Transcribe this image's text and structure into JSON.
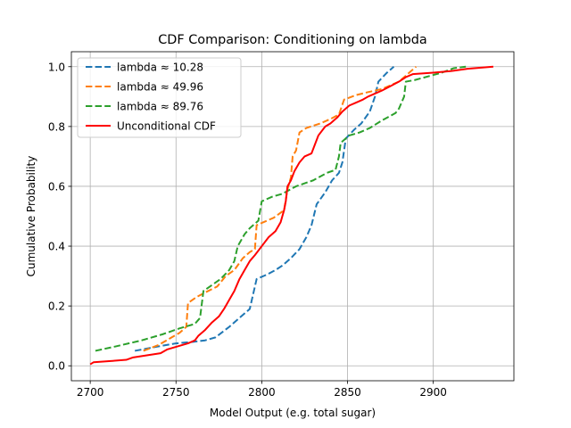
{
  "chart_data": {
    "type": "line",
    "title": "CDF Comparison: Conditioning on lambda",
    "xlabel": "Model Output (e.g. total sugar)",
    "ylabel": "Cumulative Probability",
    "xlim": [
      2689,
      2947
    ],
    "ylim": [
      -0.05,
      1.05
    ],
    "xticks": [
      2700,
      2750,
      2800,
      2850,
      2900
    ],
    "yticks": [
      0.0,
      0.2,
      0.4,
      0.6,
      0.8,
      1.0
    ],
    "xtick_labels": [
      "2700",
      "2750",
      "2800",
      "2850",
      "2900"
    ],
    "ytick_labels": [
      "0.0",
      "0.2",
      "0.4",
      "0.6",
      "0.8",
      "1.0"
    ],
    "grid": true,
    "legend_position": "top-left",
    "series": [
      {
        "name": "lambda ≈ 10.28",
        "color": "#1f77b4",
        "style": "dashed",
        "points": [
          [
            2726,
            0.05
          ],
          [
            2740,
            0.065
          ],
          [
            2750,
            0.075
          ],
          [
            2760,
            0.08
          ],
          [
            2767,
            0.085
          ],
          [
            2773,
            0.095
          ],
          [
            2781,
            0.13
          ],
          [
            2787,
            0.16
          ],
          [
            2793,
            0.19
          ],
          [
            2795,
            0.24
          ],
          [
            2797,
            0.29
          ],
          [
            2803,
            0.305
          ],
          [
            2808,
            0.32
          ],
          [
            2812,
            0.335
          ],
          [
            2817,
            0.36
          ],
          [
            2822,
            0.39
          ],
          [
            2826,
            0.43
          ],
          [
            2829,
            0.47
          ],
          [
            2832,
            0.54
          ],
          [
            2837,
            0.58
          ],
          [
            2841,
            0.62
          ],
          [
            2845,
            0.645
          ],
          [
            2847,
            0.68
          ],
          [
            2849,
            0.76
          ],
          [
            2854,
            0.79
          ],
          [
            2858,
            0.81
          ],
          [
            2863,
            0.85
          ],
          [
            2866,
            0.9
          ],
          [
            2868,
            0.95
          ],
          [
            2873,
            0.98
          ],
          [
            2877,
            1.0
          ]
        ]
      },
      {
        "name": "lambda ≈ 49.96",
        "color": "#ff7f0e",
        "style": "dashed",
        "points": [
          [
            2731,
            0.05
          ],
          [
            2740,
            0.07
          ],
          [
            2746,
            0.09
          ],
          [
            2752,
            0.11
          ],
          [
            2756,
            0.13
          ],
          [
            2757,
            0.21
          ],
          [
            2762,
            0.23
          ],
          [
            2767,
            0.245
          ],
          [
            2774,
            0.265
          ],
          [
            2779,
            0.3
          ],
          [
            2784,
            0.32
          ],
          [
            2789,
            0.36
          ],
          [
            2793,
            0.38
          ],
          [
            2796,
            0.39
          ],
          [
            2797,
            0.47
          ],
          [
            2801,
            0.48
          ],
          [
            2807,
            0.495
          ],
          [
            2813,
            0.52
          ],
          [
            2815,
            0.59
          ],
          [
            2817,
            0.63
          ],
          [
            2818,
            0.7
          ],
          [
            2820,
            0.72
          ],
          [
            2822,
            0.78
          ],
          [
            2826,
            0.795
          ],
          [
            2834,
            0.81
          ],
          [
            2840,
            0.825
          ],
          [
            2845,
            0.84
          ],
          [
            2848,
            0.89
          ],
          [
            2855,
            0.905
          ],
          [
            2862,
            0.915
          ],
          [
            2870,
            0.925
          ],
          [
            2880,
            0.95
          ],
          [
            2887,
            0.985
          ],
          [
            2890,
            1.0
          ]
        ]
      },
      {
        "name": "lambda ≈ 89.76",
        "color": "#2ca02c",
        "style": "dashed",
        "points": [
          [
            2703,
            0.05
          ],
          [
            2715,
            0.065
          ],
          [
            2730,
            0.085
          ],
          [
            2742,
            0.105
          ],
          [
            2752,
            0.125
          ],
          [
            2761,
            0.14
          ],
          [
            2764,
            0.16
          ],
          [
            2766,
            0.25
          ],
          [
            2771,
            0.27
          ],
          [
            2776,
            0.29
          ],
          [
            2781,
            0.32
          ],
          [
            2784,
            0.35
          ],
          [
            2786,
            0.4
          ],
          [
            2790,
            0.44
          ],
          [
            2793,
            0.46
          ],
          [
            2798,
            0.485
          ],
          [
            2800,
            0.55
          ],
          [
            2806,
            0.565
          ],
          [
            2812,
            0.575
          ],
          [
            2820,
            0.6
          ],
          [
            2830,
            0.62
          ],
          [
            2838,
            0.645
          ],
          [
            2843,
            0.655
          ],
          [
            2845,
            0.7
          ],
          [
            2846,
            0.745
          ],
          [
            2851,
            0.77
          ],
          [
            2857,
            0.78
          ],
          [
            2863,
            0.795
          ],
          [
            2870,
            0.82
          ],
          [
            2878,
            0.845
          ],
          [
            2880,
            0.86
          ],
          [
            2883,
            0.9
          ],
          [
            2884,
            0.95
          ],
          [
            2889,
            0.955
          ],
          [
            2905,
            0.98
          ],
          [
            2912,
            0.995
          ],
          [
            2919,
            1.0
          ]
        ]
      },
      {
        "name": "Unconditional CDF",
        "color": "#ff0000",
        "style": "solid",
        "points": [
          [
            2700,
            0.005
          ],
          [
            2702,
            0.012
          ],
          [
            2712,
            0.016
          ],
          [
            2721,
            0.02
          ],
          [
            2725,
            0.028
          ],
          [
            2733,
            0.035
          ],
          [
            2741,
            0.042
          ],
          [
            2745,
            0.055
          ],
          [
            2751,
            0.065
          ],
          [
            2757,
            0.075
          ],
          [
            2761,
            0.085
          ],
          [
            2763,
            0.1
          ],
          [
            2767,
            0.12
          ],
          [
            2771,
            0.145
          ],
          [
            2775,
            0.165
          ],
          [
            2778,
            0.19
          ],
          [
            2781,
            0.22
          ],
          [
            2784,
            0.25
          ],
          [
            2787,
            0.29
          ],
          [
            2790,
            0.32
          ],
          [
            2793,
            0.35
          ],
          [
            2796,
            0.37
          ],
          [
            2800,
            0.4
          ],
          [
            2804,
            0.43
          ],
          [
            2808,
            0.45
          ],
          [
            2811,
            0.48
          ],
          [
            2813,
            0.52
          ],
          [
            2814,
            0.55
          ],
          [
            2815,
            0.6
          ],
          [
            2817,
            0.62
          ],
          [
            2819,
            0.65
          ],
          [
            2822,
            0.68
          ],
          [
            2825,
            0.7
          ],
          [
            2829,
            0.71
          ],
          [
            2831,
            0.74
          ],
          [
            2833,
            0.77
          ],
          [
            2837,
            0.8
          ],
          [
            2840,
            0.81
          ],
          [
            2844,
            0.83
          ],
          [
            2847,
            0.85
          ],
          [
            2851,
            0.87
          ],
          [
            2855,
            0.88
          ],
          [
            2859,
            0.89
          ],
          [
            2862,
            0.9
          ],
          [
            2866,
            0.91
          ],
          [
            2870,
            0.92
          ],
          [
            2875,
            0.935
          ],
          [
            2880,
            0.95
          ],
          [
            2884,
            0.965
          ],
          [
            2888,
            0.975
          ],
          [
            2900,
            0.98
          ],
          [
            2910,
            0.985
          ],
          [
            2920,
            0.993
          ],
          [
            2935,
            1.0
          ]
        ]
      }
    ]
  }
}
